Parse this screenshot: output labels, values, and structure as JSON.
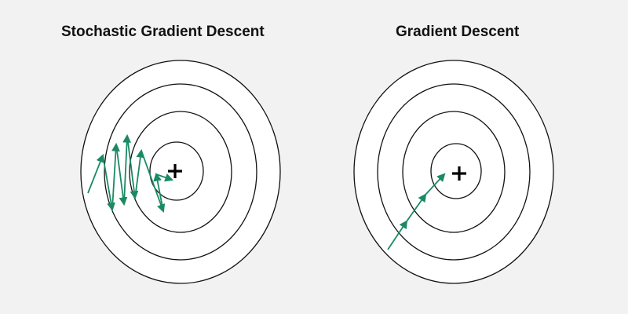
{
  "diagrams": {
    "sgd": {
      "title": "Stochastic Gradient Descent"
    },
    "gd": {
      "title": "Gradient Descent"
    }
  },
  "colors": {
    "background": "#f2f2f2",
    "ring_fill": "#ffffff",
    "ring_stroke": "#111111",
    "arrow": "#1b8a63",
    "minimum_marker": "#000000"
  }
}
